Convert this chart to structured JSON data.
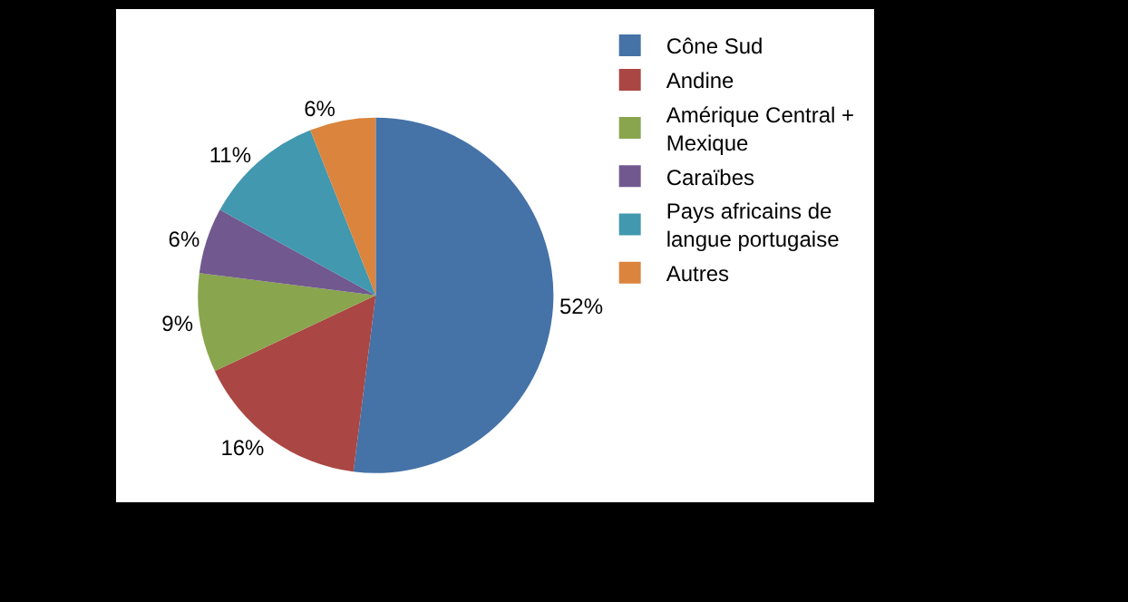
{
  "chart_data": {
    "type": "pie",
    "categories": [
      "Cône Sud",
      "Andine",
      "Amérique Central + Mexique",
      "Caraïbes",
      "Pays africains de langue portugaise",
      "Autres"
    ],
    "values": [
      52,
      16,
      9,
      6,
      11,
      6
    ],
    "value_labels": [
      "52%",
      "16%",
      "9%",
      "6%",
      "11%",
      "6%"
    ],
    "colors": [
      "#4572a7",
      "#aa4643",
      "#89a54e",
      "#71588f",
      "#4198af",
      "#db843d"
    ],
    "legend": "right"
  }
}
